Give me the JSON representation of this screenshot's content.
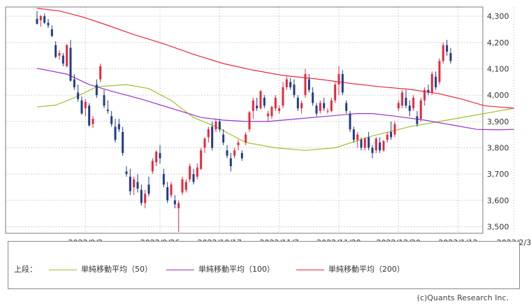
{
  "chart_data": {
    "type": "candlestick",
    "y_ticks": [
      "4,300",
      "4,200",
      "4,100",
      "4,000",
      "3,900",
      "3,800",
      "3,700",
      "3,600",
      "3,500"
    ],
    "y_tick_values": [
      4300,
      4200,
      4100,
      4000,
      3900,
      3800,
      3700,
      3600,
      3500
    ],
    "ylim": [
      3475,
      4335
    ],
    "x_ticks": [
      "2022/9/2",
      "2022/9/26",
      "2022/10/17",
      "2022/11/7",
      "2022/11/29",
      "2022/12/20",
      "2023/1/12",
      "2023/2/3"
    ],
    "x_tick_index": [
      13,
      33,
      49,
      65,
      81,
      97,
      113,
      128
    ],
    "grid": true,
    "up_color": "#e8283c",
    "down_color": "#1f3c8c",
    "candles": [
      [
        4290,
        4320,
        4270,
        4270
      ],
      [
        4285,
        4305,
        4260,
        4300
      ],
      [
        4300,
        4310,
        4270,
        4275
      ],
      [
        4275,
        4290,
        4255,
        4265
      ],
      [
        4250,
        4265,
        4220,
        4225
      ],
      [
        4190,
        4205,
        4140,
        4145
      ],
      [
        4150,
        4170,
        4135,
        4160
      ],
      [
        4150,
        4160,
        4110,
        4120
      ],
      [
        4110,
        4195,
        4105,
        4190
      ],
      [
        4180,
        4210,
        4050,
        4055
      ],
      [
        4060,
        4080,
        4020,
        4030
      ],
      [
        4010,
        4040,
        3975,
        3985
      ],
      [
        3980,
        3995,
        3925,
        3930
      ],
      [
        3950,
        3985,
        3920,
        3975
      ],
      [
        3960,
        3970,
        3880,
        3885
      ],
      [
        3890,
        3920,
        3875,
        3910
      ],
      [
        4040,
        4060,
        3990,
        4000
      ],
      [
        4060,
        4120,
        4050,
        4110
      ],
      [
        4000,
        4020,
        3950,
        3960
      ],
      [
        3945,
        3980,
        3930,
        3940
      ],
      [
        3920,
        3940,
        3880,
        3890
      ],
      [
        3880,
        3910,
        3820,
        3830
      ],
      [
        3890,
        3910,
        3860,
        3870
      ],
      [
        3860,
        3880,
        3770,
        3780
      ],
      [
        3710,
        3730,
        3690,
        3700
      ],
      [
        3690,
        3720,
        3620,
        3635
      ],
      [
        3650,
        3690,
        3620,
        3680
      ],
      [
        3670,
        3700,
        3630,
        3645
      ],
      [
        3640,
        3660,
        3580,
        3590
      ],
      [
        3590,
        3640,
        3570,
        3625
      ],
      [
        3660,
        3690,
        3615,
        3625
      ],
      [
        3710,
        3760,
        3700,
        3750
      ],
      [
        3745,
        3790,
        3730,
        3785
      ],
      [
        3780,
        3810,
        3740,
        3760
      ],
      [
        3700,
        3720,
        3650,
        3660
      ],
      [
        3650,
        3670,
        3590,
        3600
      ],
      [
        3620,
        3670,
        3610,
        3660
      ],
      [
        3600,
        3620,
        3570,
        3585
      ],
      [
        3570,
        3600,
        3480,
        3590
      ],
      [
        3630,
        3690,
        3620,
        3680
      ],
      [
        3640,
        3680,
        3630,
        3670
      ],
      [
        3680,
        3740,
        3670,
        3730
      ],
      [
        3700,
        3720,
        3660,
        3670
      ],
      [
        3690,
        3740,
        3680,
        3725
      ],
      [
        3720,
        3800,
        3715,
        3790
      ],
      [
        3800,
        3840,
        3780,
        3835
      ],
      [
        3840,
        3880,
        3820,
        3870
      ],
      [
        3880,
        3900,
        3790,
        3800
      ],
      [
        3870,
        3910,
        3860,
        3900
      ],
      [
        3900,
        3910,
        3860,
        3870
      ],
      [
        3850,
        3870,
        3810,
        3820
      ],
      [
        3790,
        3810,
        3760,
        3770
      ],
      [
        3760,
        3780,
        3710,
        3730
      ],
      [
        3770,
        3800,
        3760,
        3790
      ],
      [
        3810,
        3830,
        3790,
        3820
      ],
      [
        3780,
        3790,
        3750,
        3760
      ],
      [
        3820,
        3860,
        3810,
        3850
      ],
      [
        3870,
        3940,
        3860,
        3935
      ],
      [
        3940,
        3990,
        3910,
        3980
      ],
      [
        3960,
        3990,
        3940,
        3950
      ],
      [
        3950,
        4020,
        3945,
        4015
      ],
      [
        3990,
        4000,
        3950,
        3960
      ],
      [
        3920,
        3940,
        3900,
        3930
      ],
      [
        3920,
        3960,
        3910,
        3955
      ],
      [
        3950,
        4000,
        3940,
        3990
      ],
      [
        3940,
        3960,
        3930,
        3950
      ],
      [
        3960,
        4050,
        3950,
        4030
      ],
      [
        4030,
        4070,
        4020,
        4060
      ],
      [
        4050,
        4065,
        4020,
        4030
      ],
      [
        4040,
        4060,
        3990,
        4000
      ],
      [
        3990,
        4000,
        3940,
        3950
      ],
      [
        3950,
        3980,
        3930,
        3970
      ],
      [
        4000,
        4100,
        3990,
        4080
      ],
      [
        4060,
        4080,
        4010,
        4020
      ],
      [
        4010,
        4030,
        3960,
        3970
      ],
      [
        3960,
        3970,
        3920,
        3930
      ],
      [
        3940,
        3980,
        3930,
        3970
      ],
      [
        3970,
        3990,
        3940,
        3950
      ],
      [
        3940,
        3950,
        3930,
        3940
      ],
      [
        3940,
        3990,
        3935,
        3980
      ],
      [
        3980,
        4050,
        3970,
        4040
      ],
      [
        4040,
        4110,
        4000,
        4080
      ],
      [
        4080,
        4095,
        4000,
        4010
      ],
      [
        3970,
        3980,
        3930,
        3940
      ],
      [
        3930,
        3940,
        3860,
        3870
      ],
      [
        3870,
        3880,
        3820,
        3830
      ],
      [
        3830,
        3860,
        3800,
        3850
      ],
      [
        3830,
        3840,
        3790,
        3800
      ],
      [
        3800,
        3840,
        3790,
        3835
      ],
      [
        3840,
        3860,
        3790,
        3800
      ],
      [
        3800,
        3810,
        3760,
        3780
      ],
      [
        3790,
        3840,
        3780,
        3835
      ],
      [
        3820,
        3840,
        3780,
        3790
      ],
      [
        3790,
        3830,
        3785,
        3825
      ],
      [
        3830,
        3860,
        3820,
        3850
      ],
      [
        3860,
        3900,
        3830,
        3840
      ],
      [
        3850,
        3900,
        3840,
        3890
      ],
      [
        3950,
        3980,
        3940,
        3970
      ],
      [
        3960,
        4020,
        3950,
        4010
      ],
      [
        3990,
        4020,
        3950,
        3960
      ],
      [
        3960,
        3980,
        3920,
        3940
      ],
      [
        3950,
        4000,
        3940,
        3990
      ],
      [
        3920,
        3940,
        3880,
        3890
      ],
      [
        3910,
        3990,
        3900,
        3980
      ],
      [
        3980,
        4030,
        3960,
        4020
      ],
      [
        4020,
        4040,
        4000,
        4010
      ],
      [
        4010,
        4090,
        4000,
        4080
      ],
      [
        4070,
        4090,
        4020,
        4030
      ],
      [
        4050,
        4140,
        4040,
        4130
      ],
      [
        4130,
        4200,
        4120,
        4190
      ],
      [
        4190,
        4210,
        4150,
        4165
      ],
      [
        4160,
        4180,
        4120,
        4130
      ]
    ],
    "series": [
      {
        "name": "単純移動平均（50）",
        "color": "#9ec12a",
        "values": [
          [
            0,
            3955
          ],
          [
            5,
            3962
          ],
          [
            10,
            3990
          ],
          [
            16,
            4032
          ],
          [
            24,
            4040
          ],
          [
            30,
            4025
          ],
          [
            36,
            3980
          ],
          [
            42,
            3915
          ],
          [
            48,
            3880
          ],
          [
            56,
            3820
          ],
          [
            64,
            3800
          ],
          [
            72,
            3790
          ],
          [
            80,
            3800
          ],
          [
            90,
            3845
          ],
          [
            100,
            3880
          ],
          [
            110,
            3905
          ],
          [
            118,
            3925
          ],
          [
            124,
            3940
          ],
          [
            128,
            3950
          ]
        ]
      },
      {
        "name": "単純移動平均（100）",
        "color": "#9933cc",
        "values": [
          [
            0,
            4102
          ],
          [
            8,
            4080
          ],
          [
            14,
            4040
          ],
          [
            20,
            4015
          ],
          [
            28,
            3985
          ],
          [
            36,
            3950
          ],
          [
            44,
            3915
          ],
          [
            50,
            3905
          ],
          [
            56,
            3900
          ],
          [
            62,
            3900
          ],
          [
            70,
            3910
          ],
          [
            78,
            3920
          ],
          [
            86,
            3930
          ],
          [
            90,
            3930
          ],
          [
            96,
            3920
          ],
          [
            104,
            3905
          ],
          [
            112,
            3885
          ],
          [
            118,
            3870
          ],
          [
            124,
            3868
          ],
          [
            128,
            3870
          ]
        ]
      },
      {
        "name": "単純移動平均（200）",
        "color": "#e8283c",
        "values": [
          [
            0,
            4330
          ],
          [
            6,
            4320
          ],
          [
            12,
            4298
          ],
          [
            18,
            4270
          ],
          [
            26,
            4230
          ],
          [
            34,
            4195
          ],
          [
            42,
            4155
          ],
          [
            50,
            4120
          ],
          [
            58,
            4095
          ],
          [
            66,
            4075
          ],
          [
            76,
            4060
          ],
          [
            84,
            4045
          ],
          [
            92,
            4032
          ],
          [
            100,
            4022
          ],
          [
            108,
            4005
          ],
          [
            114,
            3985
          ],
          [
            120,
            3960
          ],
          [
            124,
            3955
          ],
          [
            128,
            3950
          ]
        ]
      }
    ],
    "legend_prefix": "上段：",
    "copyright": "(c)Quants Research Inc."
  }
}
